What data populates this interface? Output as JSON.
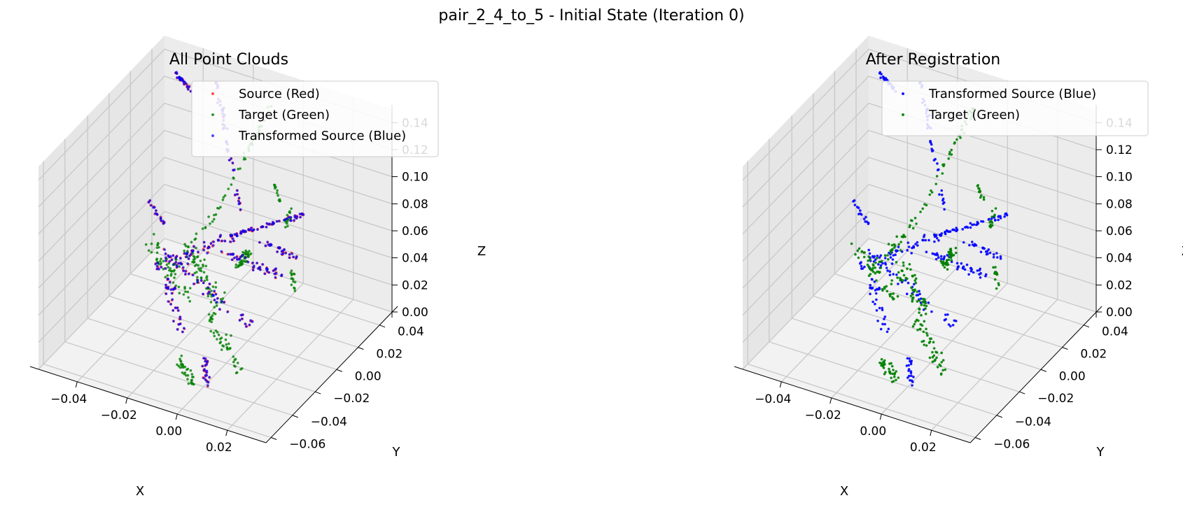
{
  "figure": {
    "suptitle": "pair_2_4_to_5 - Initial State (Iteration 0)"
  },
  "colors": {
    "red": "#ff0000",
    "green": "#008000",
    "blue": "#0000ff",
    "pane": "#f2f2f2",
    "grid": "#c8c8c8"
  },
  "chart_data": [
    {
      "type": "scatter",
      "projection": "3d",
      "title": "All Point Clouds",
      "xlabel": "X",
      "ylabel": "Y",
      "zlabel": "Z",
      "xlim": [
        -0.055,
        0.035
      ],
      "ylim": [
        -0.065,
        0.05
      ],
      "zlim": [
        0.0,
        0.15
      ],
      "x_ticks": [
        "−0.04",
        "−0.02",
        "0.00",
        "0.02"
      ],
      "y_ticks": [
        "−0.06",
        "−0.04",
        "−0.02",
        "0.00",
        "0.02",
        "0.04"
      ],
      "z_ticks": [
        "0.00",
        "0.02",
        "0.04",
        "0.06",
        "0.08",
        "0.10",
        "0.12",
        "0.14"
      ],
      "grid": true,
      "legend_position": "top-right",
      "series": [
        {
          "name": "Source (Red)",
          "color": "red",
          "alpha": 0.7
        },
        {
          "name": "Target (Green)",
          "color": "green",
          "alpha": 0.8
        },
        {
          "name": "Transformed Source (Blue)",
          "color": "blue",
          "alpha": 0.7
        }
      ]
    },
    {
      "type": "scatter",
      "projection": "3d",
      "title": "After Registration",
      "xlabel": "X",
      "ylabel": "Y",
      "zlabel": "Z",
      "xlim": [
        -0.055,
        0.035
      ],
      "ylim": [
        -0.065,
        0.05
      ],
      "zlim": [
        0.0,
        0.15
      ],
      "x_ticks": [
        "−0.04",
        "−0.02",
        "0.00",
        "0.02"
      ],
      "y_ticks": [
        "−0.06",
        "−0.04",
        "−0.02",
        "0.00",
        "0.02",
        "0.04"
      ],
      "z_ticks": [
        "0.00",
        "0.02",
        "0.04",
        "0.06",
        "0.08",
        "0.10",
        "0.12",
        "0.14"
      ],
      "grid": true,
      "legend_position": "top-right",
      "series": [
        {
          "name": "Transformed Source (Blue)",
          "color": "blue",
          "alpha": 0.9
        },
        {
          "name": "Target (Green)",
          "color": "green",
          "alpha": 0.9
        }
      ]
    }
  ]
}
